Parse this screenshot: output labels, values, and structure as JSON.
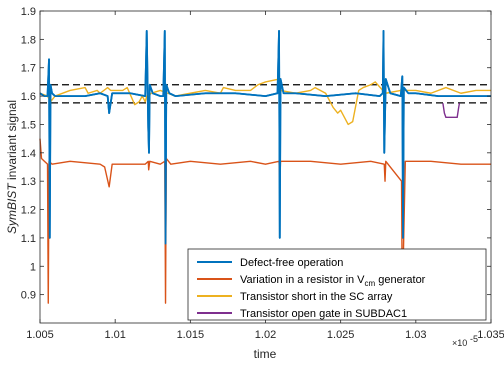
{
  "chart_data": {
    "type": "line",
    "xlabel": "time",
    "ylabel_prefix": "",
    "ylabel_italic": "SymBIST",
    "ylabel_suffix": " invariant signal",
    "x_exponent_label": "×10",
    "x_exponent_power": "-5",
    "xlim": [
      1.005,
      1.035
    ],
    "ylim": [
      0.8,
      1.9
    ],
    "x_ticks": [
      1.005,
      1.01,
      1.015,
      1.02,
      1.025,
      1.03,
      1.035
    ],
    "x_tick_labels": [
      "1.005",
      "1.01",
      "1.015",
      "1.02",
      "1.025",
      "1.03",
      "1.035"
    ],
    "y_ticks": [
      0.9,
      1.0,
      1.1,
      1.2,
      1.3,
      1.4,
      1.5,
      1.6,
      1.7,
      1.8,
      1.9
    ],
    "y_tick_labels": [
      "0.9",
      "1",
      "1.1",
      "1.2",
      "1.3",
      "1.4",
      "1.5",
      "1.6",
      "1.7",
      "1.8",
      "1.9"
    ],
    "grid": false,
    "legend_position": "bottom-right",
    "threshold_lines": [
      1.64,
      1.576
    ],
    "series": [
      {
        "name": "Defect-free operation",
        "color": "#0072BD",
        "x": [
          1.005,
          1.0053,
          1.0055,
          1.0056,
          1.00565,
          1.0057,
          1.0058,
          1.006,
          1.008,
          1.009,
          1.0095,
          1.0096,
          1.0098,
          1.011,
          1.012,
          1.0121,
          1.0122,
          1.01225,
          1.0123,
          1.0125,
          1.013,
          1.0132,
          1.0133,
          1.01335,
          1.0134,
          1.0136,
          1.014,
          1.016,
          1.018,
          1.02,
          1.0208,
          1.0209,
          1.02095,
          1.021,
          1.0212,
          1.022,
          1.024,
          1.026,
          1.0276,
          1.0278,
          1.02785,
          1.0279,
          1.028,
          1.0283,
          1.029,
          1.0291,
          1.02915,
          1.0292,
          1.0295,
          1.03,
          1.0315,
          1.033,
          1.035
        ],
        "y": [
          1.61,
          1.6,
          1.6,
          1.73,
          1.1,
          1.64,
          1.61,
          1.6,
          1.6,
          1.61,
          1.6,
          1.54,
          1.61,
          1.61,
          1.6,
          1.83,
          1.49,
          1.4,
          1.64,
          1.61,
          1.6,
          1.6,
          1.83,
          1.08,
          1.64,
          1.61,
          1.6,
          1.61,
          1.61,
          1.6,
          1.61,
          1.83,
          1.1,
          1.66,
          1.61,
          1.61,
          1.6,
          1.61,
          1.6,
          1.61,
          1.83,
          1.4,
          1.66,
          1.61,
          1.6,
          1.67,
          1.1,
          1.63,
          1.61,
          1.61,
          1.6,
          1.6,
          1.6
        ]
      },
      {
        "name": "Variation in a resistor in V_cm generator",
        "legend_main": "Variation in a resistor in V",
        "legend_sub": "cm",
        "legend_tail": " generator",
        "color": "#D95319",
        "x": [
          1.005,
          1.0051,
          1.0053,
          1.0055,
          1.00555,
          1.0056,
          1.0058,
          1.007,
          1.009,
          1.0093,
          1.0096,
          1.0098,
          1.012,
          1.0122,
          1.01223,
          1.0123,
          1.013,
          1.0133,
          1.01335,
          1.0134,
          1.0137,
          1.015,
          1.017,
          1.019,
          1.02,
          1.0209,
          1.02095,
          1.021,
          1.023,
          1.025,
          1.027,
          1.0279,
          1.02795,
          1.028,
          1.02905,
          1.0291,
          1.0293,
          1.031,
          1.033,
          1.035
        ],
        "y": [
          1.45,
          1.38,
          1.37,
          1.36,
          0.87,
          1.37,
          1.36,
          1.37,
          1.36,
          1.35,
          1.28,
          1.36,
          1.36,
          1.37,
          1.34,
          1.37,
          1.36,
          1.37,
          0.87,
          1.38,
          1.36,
          1.37,
          1.36,
          1.37,
          1.36,
          1.37,
          1.3,
          1.37,
          1.37,
          1.36,
          1.37,
          1.36,
          1.3,
          1.37,
          1.3,
          0.86,
          1.37,
          1.37,
          1.36,
          1.36
        ]
      },
      {
        "name": "Transistor short in the SC array",
        "color": "#EDB120",
        "x": [
          1.005,
          1.0055,
          1.0057,
          1.006,
          1.007,
          1.008,
          1.0082,
          1.0088,
          1.009,
          1.0095,
          1.0097,
          1.0105,
          1.0108,
          1.0113,
          1.0116,
          1.0118,
          1.012,
          1.0121,
          1.0122,
          1.0124,
          1.013,
          1.0135,
          1.014,
          1.015,
          1.016,
          1.017,
          1.0172,
          1.018,
          1.019,
          1.0195,
          1.02,
          1.0209,
          1.021,
          1.022,
          1.023,
          1.0233,
          1.024,
          1.0245,
          1.0248,
          1.025,
          1.0255,
          1.0258,
          1.0262,
          1.0265,
          1.027,
          1.0273,
          1.0278,
          1.028,
          1.029,
          1.03,
          1.031,
          1.032,
          1.033,
          1.034,
          1.035
        ],
        "y": [
          1.61,
          1.6,
          1.58,
          1.6,
          1.62,
          1.63,
          1.61,
          1.62,
          1.61,
          1.63,
          1.62,
          1.62,
          1.63,
          1.57,
          1.58,
          1.6,
          1.58,
          1.6,
          1.6,
          1.61,
          1.62,
          1.61,
          1.6,
          1.61,
          1.62,
          1.61,
          1.63,
          1.62,
          1.62,
          1.64,
          1.65,
          1.66,
          1.62,
          1.61,
          1.62,
          1.63,
          1.61,
          1.56,
          1.54,
          1.55,
          1.5,
          1.51,
          1.62,
          1.63,
          1.64,
          1.65,
          1.62,
          1.61,
          1.62,
          1.62,
          1.61,
          1.63,
          1.61,
          1.62,
          1.62
        ]
      },
      {
        "name": "Transistor open gate in SUBDAC1",
        "color": "#7E2F8E",
        "x": [
          1.0318,
          1.0319,
          1.032,
          1.03275,
          1.03285,
          1.0329
        ],
        "y": [
          1.575,
          1.54,
          1.525,
          1.525,
          1.56,
          1.575
        ]
      }
    ]
  }
}
